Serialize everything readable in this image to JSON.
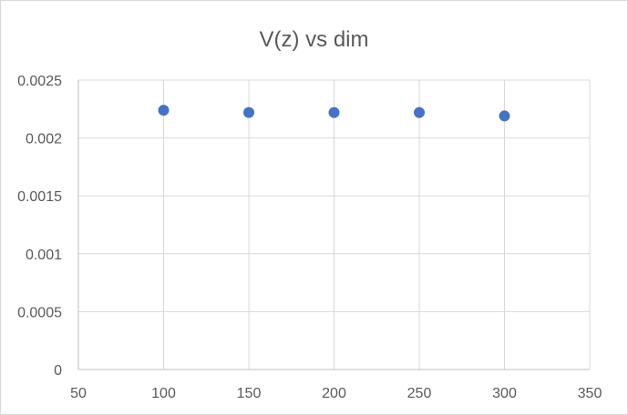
{
  "chart_data": {
    "type": "scatter",
    "title": "V(z) vs dim",
    "xlabel": "",
    "ylabel": "",
    "xlim": [
      50,
      350
    ],
    "ylim": [
      0,
      0.0025
    ],
    "x_ticks": [
      50,
      100,
      150,
      200,
      250,
      300,
      350
    ],
    "y_ticks": [
      0,
      0.0005,
      0.001,
      0.0015,
      0.002,
      0.0025
    ],
    "x_tick_labels": [
      "50",
      "100",
      "150",
      "200",
      "250",
      "300",
      "350"
    ],
    "y_tick_labels": [
      "0",
      "0.0005",
      "0.001",
      "0.0015",
      "0.002",
      "0.0025"
    ],
    "grid": true,
    "legend": "none",
    "series": [
      {
        "color": "#4472c4",
        "x": [
          100,
          150,
          200,
          250,
          300
        ],
        "y": [
          0.00224,
          0.00222,
          0.00222,
          0.00222,
          0.00219
        ]
      }
    ]
  }
}
